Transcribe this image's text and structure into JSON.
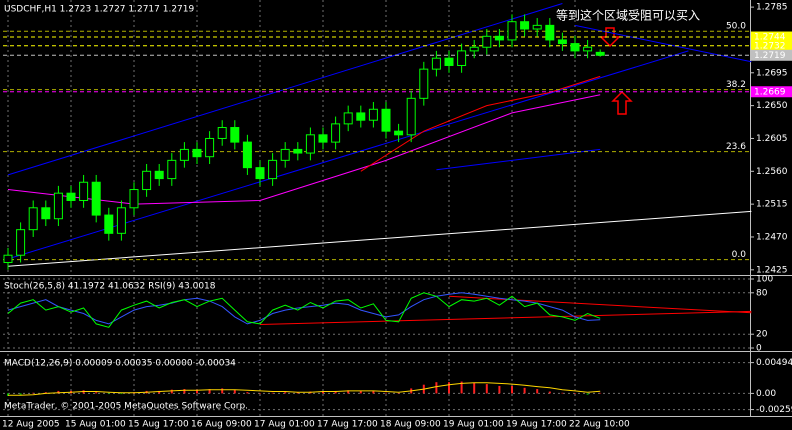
{
  "chart_data": [
    {
      "type": "candlestick",
      "title": "USDCHF,H1  1.2723 1.2727 1.2717 1.2719",
      "categories": [
        "12 Aug 2005",
        null,
        null,
        null,
        null,
        "15 Aug 01:00",
        null,
        null,
        null,
        null,
        "15 Aug 17:00",
        null,
        null,
        null,
        null,
        "16 Aug 09:00",
        null,
        null,
        null,
        null,
        "17 Aug 01:00",
        null,
        null,
        null,
        null,
        "17 Aug 17:00",
        null,
        null,
        null,
        null,
        "18 Aug 09:00",
        null,
        null,
        null,
        null,
        "19 Aug 01:00",
        null,
        null,
        null,
        null,
        "19 Aug 17:00",
        null,
        null,
        null,
        null,
        "22 Aug 10:00",
        null,
        null
      ],
      "open": [
        1.2435,
        1.2445,
        1.248,
        1.251,
        1.2495,
        1.253,
        1.252,
        1.2545,
        1.25,
        1.2475,
        1.251,
        1.2535,
        1.256,
        1.255,
        1.2575,
        1.259,
        1.258,
        1.2605,
        1.262,
        1.26,
        1.2565,
        1.255,
        1.2575,
        1.259,
        1.2585,
        1.261,
        1.26,
        1.2625,
        1.264,
        1.263,
        1.2645,
        1.2615,
        1.261,
        1.266,
        1.27,
        1.2715,
        1.2705,
        1.2725,
        1.273,
        1.2745,
        1.274,
        1.2765,
        1.2755,
        1.276,
        1.274,
        1.2735,
        1.2725,
        1.2723
      ],
      "high": [
        1.2455,
        1.249,
        1.252,
        1.252,
        1.254,
        1.254,
        1.2555,
        1.2555,
        1.251,
        1.252,
        1.2545,
        1.257,
        1.257,
        1.2585,
        1.26,
        1.26,
        1.2615,
        1.263,
        1.263,
        1.261,
        1.2575,
        1.2585,
        1.26,
        1.26,
        1.262,
        1.262,
        1.2635,
        1.265,
        1.265,
        1.2655,
        1.2655,
        1.2625,
        1.267,
        1.271,
        1.2725,
        1.2725,
        1.2735,
        1.274,
        1.2755,
        1.2755,
        1.2775,
        1.2775,
        1.277,
        1.277,
        1.275,
        1.2745,
        1.274,
        1.2727
      ],
      "low": [
        1.2425,
        1.2435,
        1.247,
        1.2485,
        1.2485,
        1.251,
        1.251,
        1.249,
        1.2465,
        1.2465,
        1.25,
        1.2525,
        1.254,
        1.254,
        1.2565,
        1.257,
        1.257,
        1.2595,
        1.259,
        1.2555,
        1.254,
        1.254,
        1.2565,
        1.2575,
        1.2575,
        1.259,
        1.259,
        1.2615,
        1.262,
        1.262,
        1.2605,
        1.26,
        1.26,
        1.265,
        1.269,
        1.2695,
        1.2695,
        1.2715,
        1.272,
        1.273,
        1.273,
        1.2745,
        1.2745,
        1.273,
        1.2725,
        1.2715,
        1.2715,
        1.2717
      ],
      "close": [
        1.2445,
        1.248,
        1.251,
        1.2495,
        1.253,
        1.252,
        1.2545,
        1.25,
        1.2475,
        1.251,
        1.2535,
        1.256,
        1.255,
        1.2575,
        1.259,
        1.258,
        1.2605,
        1.262,
        1.26,
        1.2565,
        1.255,
        1.2575,
        1.259,
        1.2585,
        1.261,
        1.26,
        1.2625,
        1.264,
        1.263,
        1.2645,
        1.2615,
        1.261,
        1.266,
        1.27,
        1.2715,
        1.2705,
        1.2725,
        1.273,
        1.2745,
        1.274,
        1.2765,
        1.2755,
        1.276,
        1.274,
        1.2735,
        1.2725,
        1.273,
        1.2719
      ],
      "up_color": "#000000",
      "down_color": "#00ff00",
      "wick_color": "#00ff00",
      "ylim": [
        1.2422,
        1.2792
      ],
      "yticks": [
        1.2785,
        1.2695,
        {
          "value": 1.265,
          "label": "1.2650"
        },
        1.2605,
        {
          "value": 1.256,
          "label": "1.2560"
        },
        1.2515,
        {
          "value": 1.247,
          "label": "1.2470"
        },
        1.2425
      ],
      "xgrid": true,
      "ygrid": false,
      "lines": [
        {
          "color": "#0000ff",
          "x": [
            0,
            44
          ],
          "y": [
            1.2555,
            1.279
          ]
        },
        {
          "color": "#0000ff",
          "x": [
            0,
            54
          ],
          "y": [
            1.244,
            1.2725
          ]
        },
        {
          "color": "#0000ff",
          "x": [
            45,
            59
          ],
          "y": [
            1.276,
            1.271
          ]
        },
        {
          "color": "#0000ff",
          "x": [
            34,
            47
          ],
          "y": [
            1.2562,
            1.259
          ]
        },
        {
          "color": "#ffffff",
          "x": [
            0,
            59
          ],
          "y": [
            1.243,
            1.2505
          ]
        },
        {
          "color": "#ff00ff",
          "x": [
            0,
            10,
            20,
            30,
            40,
            47
          ],
          "y": [
            1.2535,
            1.2515,
            1.252,
            1.2575,
            1.264,
            1.2665
          ]
        },
        {
          "color": "#ff0000",
          "x": [
            28,
            33,
            38,
            43,
            47
          ],
          "y": [
            1.256,
            1.2615,
            1.265,
            1.2668,
            1.269
          ]
        }
      ],
      "fibo_color": "#b0b000",
      "fibo": [
        {
          "label": "50.0",
          "value": 1.2752
        },
        {
          "label": "38.2",
          "value": 1.2672
        },
        {
          "label": "23.6",
          "value": 1.2587
        },
        {
          "label": "0.0",
          "value": 1.2439
        }
      ],
      "price_markers": [
        {
          "value": 1.2744,
          "label": "1.2744",
          "color": "#ffff00"
        },
        {
          "value": 1.2732,
          "label": "1.2732",
          "color": "#ffff00"
        },
        {
          "value": 1.2719,
          "label": "1.2719",
          "color": "#c0c0c0"
        },
        {
          "value": 1.2669,
          "label": "1.2669",
          "color": "#ff00ff"
        }
      ],
      "annotation": {
        "text": "等到这个区域受阻可以买入",
        "color": "#ffff00"
      }
    },
    {
      "type": "line",
      "title": "Stoch(26,5,8) 41.1972 41.0632  RSI(9) 43.0018",
      "ylim": [
        0,
        100
      ],
      "yticks": [
        100,
        80,
        20,
        0
      ],
      "xgrid": true,
      "ygrid": true,
      "series": [
        {
          "color": "#3355ff",
          "values": [
            55,
            60,
            65,
            70,
            60,
            55,
            50,
            40,
            35,
            45,
            55,
            60,
            62,
            65,
            70,
            72,
            68,
            60,
            45,
            35,
            40,
            50,
            55,
            58,
            60,
            62,
            65,
            63,
            55,
            50,
            45,
            48,
            60,
            70,
            75,
            78,
            80,
            78,
            75,
            72,
            70,
            68,
            65,
            60,
            55,
            45,
            40,
            41
          ]
        },
        {
          "color": "#00ff00",
          "values": [
            50,
            65,
            70,
            55,
            60,
            52,
            58,
            35,
            30,
            55,
            62,
            68,
            58,
            66,
            70,
            60,
            68,
            72,
            55,
            38,
            35,
            55,
            62,
            55,
            66,
            58,
            68,
            70,
            58,
            64,
            40,
            38,
            72,
            80,
            75,
            60,
            70,
            68,
            72,
            62,
            75,
            60,
            65,
            48,
            45,
            40,
            50,
            43
          ]
        }
      ],
      "lines": [
        {
          "color": "#ff0000",
          "x": [
            20,
            59
          ],
          "y": [
            34,
            53
          ]
        },
        {
          "color": "#ff0000",
          "x": [
            35,
            59
          ],
          "y": [
            75,
            51
          ]
        }
      ]
    },
    {
      "type": "bar",
      "title": "MACD(12,26,9) 0.00009 0.00035 0.00000 -0.00034",
      "ylim": [
        -0.0033,
        0.006
      ],
      "yticks": [
        0.00494,
        {
          "value": 0,
          "label": "0.00"
        },
        -0.00259
      ],
      "xgrid": true,
      "ygrid": true,
      "positive_color": "#ff2020",
      "negative_color": "#00c000",
      "values": [
        -0.0004,
        -0.0002,
        0.0001,
        0.0002,
        0.0004,
        0.0004,
        0.0005,
        0.0002,
        -0.0001,
        -0.0001,
        0.0002,
        0.0004,
        0.0004,
        0.0006,
        0.0007,
        0.0006,
        0.0007,
        0.0008,
        0.0006,
        0.0002,
        0,
        0.0001,
        0.0002,
        0.0002,
        0.0003,
        0.0003,
        0.0004,
        0.0005,
        0.0004,
        0.0004,
        0.0001,
        0,
        0.0008,
        0.0014,
        0.0018,
        0.0018,
        0.0019,
        0.0017,
        0.0015,
        0.0012,
        0.0012,
        0.0009,
        0.0007,
        0.0003,
        0.0001,
        0,
        -0.0002,
        9e-05
      ],
      "series": [
        {
          "color": "#ffd700",
          "values": [
            -0.0003,
            -0.0003,
            -0.0002,
            0,
            0.0001,
            0.0002,
            0.0003,
            0.0003,
            0.0002,
            0.0001,
            0.0001,
            0.0002,
            0.0003,
            0.0004,
            0.0005,
            0.0005,
            0.0006,
            0.0006,
            0.0006,
            0.0005,
            0.0004,
            0.0003,
            0.0003,
            0.0002,
            0.0002,
            0.0003,
            0.0003,
            0.0004,
            0.0004,
            0.0004,
            0.0003,
            0.0002,
            0.0004,
            0.0007,
            0.0011,
            0.0014,
            0.0016,
            0.0017,
            0.0017,
            0.0016,
            0.0015,
            0.0013,
            0.0011,
            0.0009,
            0.0006,
            0.0004,
            0.0002,
            0.00035
          ]
        }
      ],
      "watermark": "MetaTrader, © 2001-2005 MetaQuotes Software Corp."
    }
  ]
}
